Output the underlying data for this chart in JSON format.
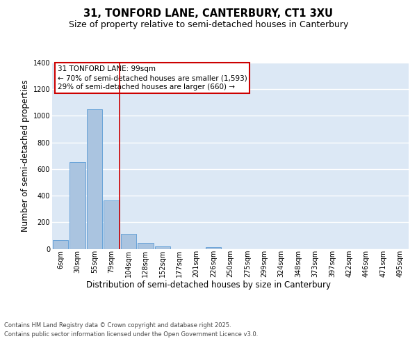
{
  "title_line1": "31, TONFORD LANE, CANTERBURY, CT1 3XU",
  "title_line2": "Size of property relative to semi-detached houses in Canterbury",
  "xlabel": "Distribution of semi-detached houses by size in Canterbury",
  "ylabel": "Number of semi-detached properties",
  "footnote1": "Contains HM Land Registry data © Crown copyright and database right 2025.",
  "footnote2": "Contains public sector information licensed under the Open Government Licence v3.0.",
  "bar_labels": [
    "6sqm",
    "30sqm",
    "55sqm",
    "79sqm",
    "104sqm",
    "128sqm",
    "152sqm",
    "177sqm",
    "201sqm",
    "226sqm",
    "250sqm",
    "275sqm",
    "299sqm",
    "324sqm",
    "348sqm",
    "373sqm",
    "397sqm",
    "422sqm",
    "446sqm",
    "471sqm",
    "495sqm"
  ],
  "bar_values": [
    65,
    650,
    1050,
    365,
    110,
    45,
    20,
    0,
    0,
    15,
    0,
    0,
    0,
    0,
    0,
    0,
    0,
    0,
    0,
    0,
    0
  ],
  "bar_color": "#aac4e0",
  "bar_edge_color": "#5b9bd5",
  "background_color": "#dce8f5",
  "grid_color": "#ffffff",
  "annotation_line1": "31 TONFORD LANE: 99sqm",
  "annotation_line2": "← 70% of semi-detached houses are smaller (1,593)",
  "annotation_line3": "29% of semi-detached houses are larger (660) →",
  "annotation_box_color": "#cc0000",
  "vertical_line_color": "#cc0000",
  "ylim": [
    0,
    1400
  ],
  "yticks": [
    0,
    200,
    400,
    600,
    800,
    1000,
    1200,
    1400
  ],
  "title_fontsize": 10.5,
  "subtitle_fontsize": 9,
  "axis_label_fontsize": 8.5,
  "tick_fontsize": 7,
  "annotation_fontsize": 7.5,
  "footnote_fontsize": 6
}
